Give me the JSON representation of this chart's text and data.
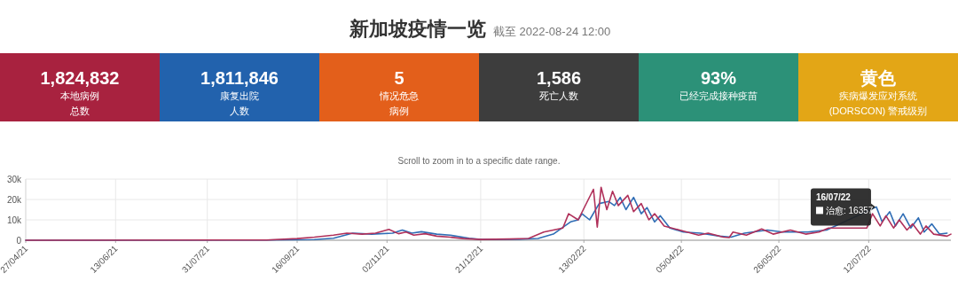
{
  "chart_data": [
    {
      "type": "other",
      "title": "新加坡疫情一览",
      "subtitle": "截至 2022-08-24 12:00",
      "value_labels": [
        "1,824,832",
        "1,811,846",
        "5",
        "1,586",
        "93%",
        "黄色"
      ],
      "categories": [
        "本地病例总数",
        "康复出院人数",
        "情况危急病例",
        "死亡人数",
        "已经完成接种疫苗",
        "疾病爆发应对系统(DORSCON) 警戒级别"
      ],
      "colors": [
        "#a8223f",
        "#2262ad",
        "#e35f1b",
        "#3d3d3d",
        "#2c9178",
        "#e3a616"
      ]
    },
    {
      "type": "line",
      "subtitle": "Scroll to zoom in to a specific date range.",
      "xlim": [
        "2021-04-27",
        "2022-08-24"
      ],
      "xticks": [
        {
          "value": "2021-04-27",
          "label": "27/04/21"
        },
        {
          "value": "2021-06-13",
          "label": "13/06/21"
        },
        {
          "value": "2021-07-31",
          "label": "31/07/21"
        },
        {
          "value": "2021-09-16",
          "label": "16/09/21"
        },
        {
          "value": "2021-11-02",
          "label": "02/11/21"
        },
        {
          "value": "2021-12-21",
          "label": "21/12/21"
        },
        {
          "value": "2022-02-13",
          "label": "13/02/22"
        },
        {
          "value": "2022-04-05",
          "label": "05/04/22"
        },
        {
          "value": "2022-05-26",
          "label": "26/05/22"
        },
        {
          "value": "2022-07-12",
          "label": "12/07/22"
        }
      ],
      "ylim": [
        0,
        30000
      ],
      "yticks": [
        0,
        {
          "value": 10000,
          "label": "10k"
        },
        {
          "value": 20000,
          "label": "20k"
        },
        {
          "value": 30000,
          "label": "30k"
        }
      ],
      "grid": true,
      "series": [
        {
          "color": "#2f6db5",
          "x": [
            "2021-04-27",
            "2021-08-31",
            "2021-09-25",
            "2021-10-05",
            "2021-10-15",
            "2021-10-25",
            "2021-11-05",
            "2021-11-10",
            "2021-11-15",
            "2021-11-20",
            "2021-11-28",
            "2021-12-05",
            "2021-12-15",
            "2021-12-21",
            "2022-01-10",
            "2022-01-20",
            "2022-01-28",
            "2022-02-06",
            "2022-02-10",
            "2022-02-12",
            "2022-02-16",
            "2022-02-21",
            "2022-02-26",
            "2022-03-01",
            "2022-03-04",
            "2022-03-07",
            "2022-03-11",
            "2022-03-15",
            "2022-03-18",
            "2022-03-22",
            "2022-03-25",
            "2022-03-30",
            "2022-04-06",
            "2022-04-15",
            "2022-04-25",
            "2022-05-01",
            "2022-05-08",
            "2022-05-20",
            "2022-05-28",
            "2022-06-10",
            "2022-06-20",
            "2022-07-16",
            "2022-07-19",
            "2022-07-23",
            "2022-07-26",
            "2022-07-30",
            "2022-08-03",
            "2022-08-07",
            "2022-08-10",
            "2022-08-14",
            "2022-08-18",
            "2022-08-22"
          ],
          "values": [
            0,
            100,
            300,
            1000,
            3500,
            3000,
            3500,
            5000,
            3500,
            4200,
            3000,
            2500,
            1000,
            400,
            500,
            900,
            3000,
            9000,
            10000,
            13000,
            10000,
            18000,
            19000,
            17000,
            21000,
            15000,
            21000,
            13000,
            16000,
            9000,
            12000,
            6000,
            4000,
            3500,
            2000,
            1500,
            3500,
            5000,
            4000,
            4000,
            5000,
            16357,
            9000,
            14000,
            7000,
            13000,
            6000,
            11000,
            4000,
            8000,
            3000,
            3500
          ]
        },
        {
          "color": "#b0305a",
          "x": [
            "2021-04-27",
            "2021-08-31",
            "2021-09-16",
            "2021-09-25",
            "2021-10-05",
            "2021-10-12",
            "2021-10-20",
            "2021-10-27",
            "2021-11-03",
            "2021-11-08",
            "2021-11-12",
            "2021-11-16",
            "2021-11-22",
            "2021-11-28",
            "2021-12-05",
            "2021-12-12",
            "2021-12-21",
            "2022-01-05",
            "2022-01-15",
            "2022-01-23",
            "2022-02-02",
            "2022-02-05",
            "2022-02-10",
            "2022-02-18",
            "2022-02-20",
            "2022-02-22",
            "2022-02-25",
            "2022-02-28",
            "2022-03-03",
            "2022-03-08",
            "2022-03-11",
            "2022-03-15",
            "2022-03-19",
            "2022-03-22",
            "2022-03-27",
            "2022-04-04",
            "2022-04-14",
            "2022-04-19",
            "2022-04-27",
            "2022-04-30",
            "2022-05-02",
            "2022-05-09",
            "2022-05-17",
            "2022-05-23",
            "2022-06-01",
            "2022-06-09",
            "2022-06-16",
            "2022-06-21",
            "2022-07-11",
            "2022-07-14",
            "2022-07-18",
            "2022-07-21",
            "2022-07-25",
            "2022-07-28",
            "2022-08-01",
            "2022-08-04",
            "2022-08-08",
            "2022-08-11",
            "2022-08-15",
            "2022-08-22",
            "2022-08-24"
          ],
          "values": [
            0,
            100,
            800,
            1500,
            2500,
            3500,
            3000,
            3500,
            5300,
            3200,
            4000,
            2500,
            3200,
            2000,
            1500,
            800,
            400,
            600,
            900,
            4000,
            6000,
            13000,
            10000,
            25000,
            6400,
            26000,
            15000,
            24000,
            17000,
            22000,
            14000,
            18000,
            10000,
            13000,
            7000,
            5000,
            2500,
            3500,
            1500,
            1300,
            4000,
            2500,
            5500,
            3000,
            5000,
            3000,
            4000,
            6000,
            6000,
            13000,
            7000,
            12000,
            6000,
            10000,
            5000,
            8000,
            3000,
            7000,
            3000,
            2000,
            3000
          ]
        }
      ],
      "annotations": [
        {
          "text": "16/07/22\n治愈: 16357",
          "x": "2022-07-16",
          "y": 16357
        }
      ]
    }
  ]
}
